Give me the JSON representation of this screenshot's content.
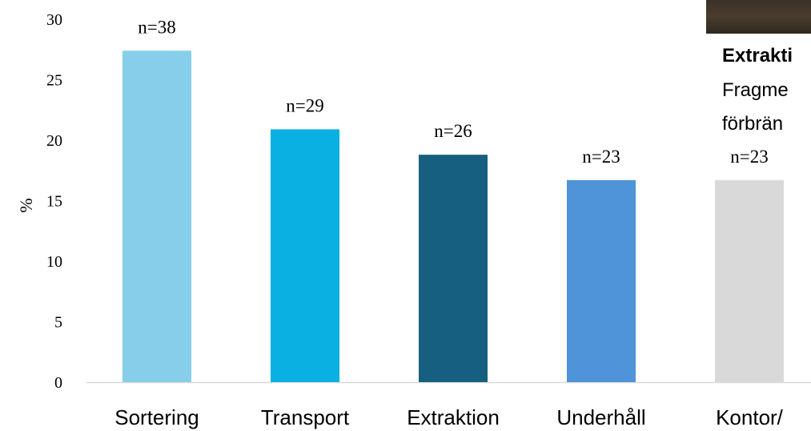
{
  "chart_data": {
    "type": "bar",
    "categories": [
      "Sortering",
      "Transport",
      "Extraktion",
      "Underhåll",
      "Kontor/"
    ],
    "values": [
      27.4,
      20.9,
      18.8,
      16.7,
      16.7
    ],
    "data_labels": [
      "n=38",
      "n=29",
      "n=26",
      "n=23",
      "n=23"
    ],
    "colors": [
      "#87ceeb",
      "#0bb0e2",
      "#175f80",
      "#4f94d8",
      "#d9d9d9"
    ],
    "ylabel": "%",
    "ylim": [
      0,
      30
    ],
    "yticks": [
      "0",
      "5",
      "10",
      "15",
      "20",
      "25",
      "30"
    ],
    "grid": false
  },
  "overlay": {
    "title": "Extrakti",
    "line1": "Fragme",
    "line2": "förbrän"
  }
}
